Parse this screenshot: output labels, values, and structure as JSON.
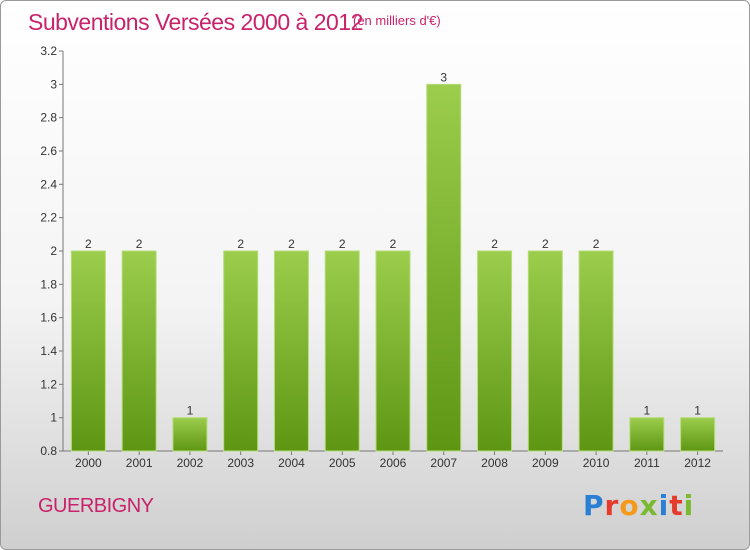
{
  "header": {
    "title": "Subventions Versées 2000 à 2012",
    "subtitle": "(en milliers d'€)"
  },
  "footer": {
    "town": "GUERBIGNY",
    "logo": [
      "P",
      "r",
      "o",
      "x",
      "i",
      "t",
      "i"
    ]
  },
  "colors": {
    "bar_top": "#9ccd4d",
    "bar_bottom": "#5e9614",
    "title": "#c8236a"
  },
  "chart_data": {
    "type": "bar",
    "title": "Subventions Versées 2000 à 2012",
    "subtitle": "(en milliers d'€)",
    "xlabel": "",
    "ylabel": "",
    "categories": [
      "2000",
      "2001",
      "2002",
      "2003",
      "2004",
      "2005",
      "2006",
      "2007",
      "2008",
      "2009",
      "2010",
      "2011",
      "2012"
    ],
    "values": [
      2,
      2,
      1,
      2,
      2,
      2,
      2,
      3,
      2,
      2,
      2,
      1,
      1
    ],
    "data_labels": [
      "2",
      "2",
      "1",
      "2",
      "2",
      "2",
      "2",
      "3",
      "2",
      "2",
      "2",
      "1",
      "1"
    ],
    "ylim": [
      0.8,
      3.2
    ],
    "yticks": [
      0.8,
      1,
      1.2,
      1.4,
      1.6,
      1.8,
      2,
      2.2,
      2.4,
      2.6,
      2.8,
      3,
      3.2
    ],
    "ytick_labels": [
      "0.8",
      "1",
      "1.2",
      "1.4",
      "1.6",
      "1.8",
      "2",
      "2.2",
      "2.4",
      "2.6",
      "2.8",
      "3",
      "3.2"
    ],
    "grid": false,
    "legend": "none"
  }
}
